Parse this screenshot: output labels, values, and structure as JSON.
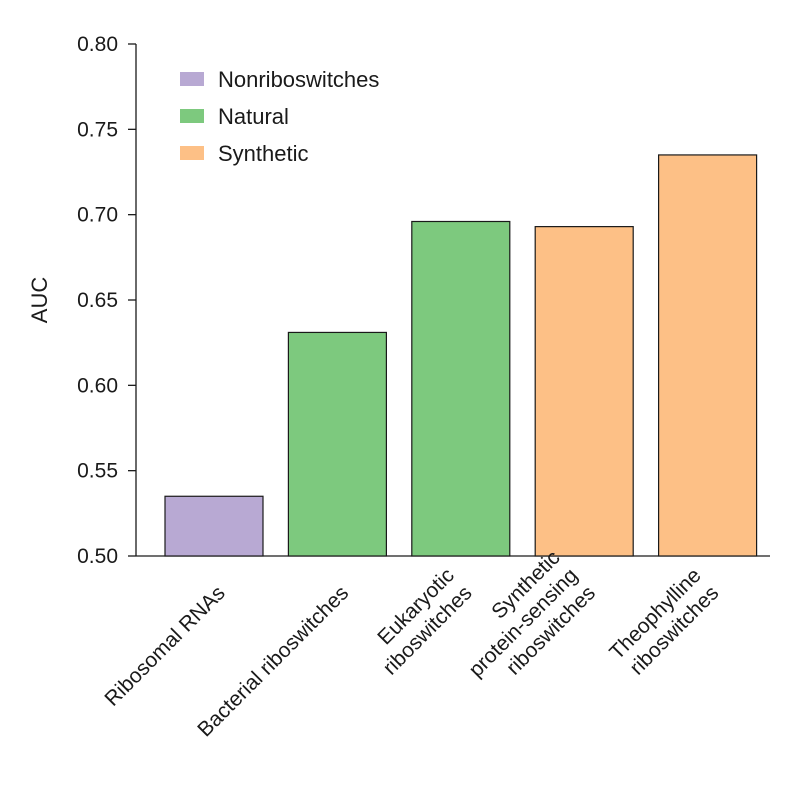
{
  "chart_data": {
    "type": "bar",
    "ylabel": "AUC",
    "xlabel": "",
    "title": "",
    "ylim": [
      0.5,
      0.8
    ],
    "yticks": [
      "0.50",
      "0.55",
      "0.60",
      "0.65",
      "0.70",
      "0.75",
      "0.80"
    ],
    "grid": false,
    "legend_position": "top-left",
    "legend": [
      {
        "label": "Nonriboswitches",
        "color": "#b8a9d3"
      },
      {
        "label": "Natural",
        "color": "#7dc97e"
      },
      {
        "label": "Synthetic",
        "color": "#fdc086"
      }
    ],
    "categories": [
      [
        "Ribosomal RNAs"
      ],
      [
        "Bacterial riboswitches"
      ],
      [
        "Eukaryotic",
        "riboswitches"
      ],
      [
        "Synthetic",
        "protein-sensing",
        "riboswitches"
      ],
      [
        "Theophylline",
        "riboswitches"
      ]
    ],
    "values": [
      0.535,
      0.631,
      0.696,
      0.693,
      0.735
    ],
    "groups": [
      "Nonriboswitches",
      "Natural",
      "Natural",
      "Synthetic",
      "Synthetic"
    ]
  }
}
